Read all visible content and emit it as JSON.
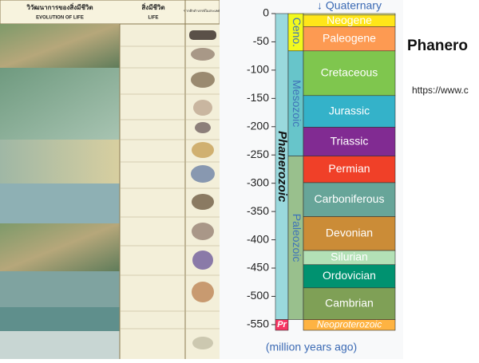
{
  "poster": {
    "title_th": "วิวัฒนาการของสิ่งมีชีวิต",
    "title_en": "EVOLUTION OF LIFE",
    "life_th": "สิ่งมีชีวิต",
    "life_en": "LIFE",
    "fossil_th": "ซากดึกดำบรรพ์ในประเทศไทย"
  },
  "slide": {
    "title": "Phanero",
    "url": "https://www.c"
  },
  "chart_data": {
    "type": "timescale",
    "axis_label": "(million years ago)",
    "ylim": [
      -560,
      0
    ],
    "yticks": [
      0,
      -50,
      -100,
      -150,
      -200,
      -250,
      -300,
      -350,
      -400,
      -450,
      -500,
      -550
    ],
    "eons": [
      {
        "name": "Phanerozoic",
        "start": -541,
        "end": 0,
        "color": "#9ad9dd"
      },
      {
        "name": "Pr",
        "start": -560,
        "end": -541,
        "color": "#f73563"
      }
    ],
    "eras": [
      {
        "name": "Ceno.",
        "start": -66,
        "end": 0,
        "color": "#f2f91d"
      },
      {
        "name": "Mesozoic",
        "start": -252,
        "end": -66,
        "color": "#67c5ca"
      },
      {
        "name": "Paleozoic",
        "start": -541,
        "end": -252,
        "color": "#99c08d"
      }
    ],
    "periods": [
      {
        "name": "↓ Quaternary",
        "start": -2.6,
        "end": 0,
        "color": "#f9f97f"
      },
      {
        "name": "Neogene",
        "start": -23,
        "end": -2.6,
        "color": "#ffe619"
      },
      {
        "name": "Paleogene",
        "start": -66,
        "end": -23,
        "color": "#fd9a52"
      },
      {
        "name": "Cretaceous",
        "start": -145,
        "end": -66,
        "color": "#7fc64e"
      },
      {
        "name": "Jurassic",
        "start": -201,
        "end": -145,
        "color": "#34b2c9"
      },
      {
        "name": "Triassic",
        "start": -252,
        "end": -201,
        "color": "#812b92"
      },
      {
        "name": "Permian",
        "start": -299,
        "end": -252,
        "color": "#f04028"
      },
      {
        "name": "Carboniferous",
        "start": -359,
        "end": -299,
        "color": "#67a599"
      },
      {
        "name": "Devonian",
        "start": -419,
        "end": -359,
        "color": "#cb8c37"
      },
      {
        "name": "Silurian",
        "start": -444,
        "end": -419,
        "color": "#b3e1b6"
      },
      {
        "name": "Ordovician",
        "start": -485,
        "end": -444,
        "color": "#009270"
      },
      {
        "name": "Cambrian",
        "start": -541,
        "end": -485,
        "color": "#7fa056"
      },
      {
        "name": "Neoproterozoic",
        "start": -560,
        "end": -541,
        "color": "#feb342"
      }
    ]
  }
}
